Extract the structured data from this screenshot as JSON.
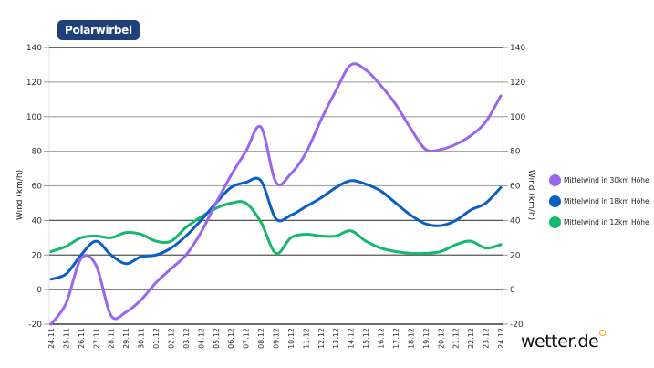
{
  "header": {
    "title": "Polarwirbel"
  },
  "brand": {
    "name": "wetter.de",
    "accent": "#f0b400"
  },
  "legend": [
    {
      "label": "Mittelwind in 30km Höhe",
      "color": "#9966ee"
    },
    {
      "label": "Mittelwind in 18km Höhe",
      "color": "#0a5fc4"
    },
    {
      "label": "Mittelwind in 12km Höhe",
      "color": "#14b86e"
    }
  ],
  "axes": {
    "ylabel_left": "Wind (km/h)",
    "ylabel_right": "Wind (km/h)"
  },
  "chart_data": {
    "type": "line",
    "title": "Polarwirbel",
    "xlabel": "",
    "ylabel": "Wind (km/h)",
    "ylim": [
      -20,
      140
    ],
    "yticks": [
      -20,
      0,
      20,
      40,
      60,
      80,
      100,
      120,
      140
    ],
    "grid": true,
    "legend_position": "right",
    "x": [
      "24.11",
      "25.11",
      "26.11",
      "27.11",
      "28.11",
      "29.11",
      "30.11",
      "01.12",
      "02.12",
      "03.12",
      "04.12",
      "05.12",
      "06.12",
      "07.12",
      "08.12",
      "09.12",
      "10.12",
      "11.12",
      "12.12",
      "13.12",
      "14.12",
      "15.12",
      "16.12",
      "17.12",
      "18.12",
      "19.12",
      "20.12",
      "21.12",
      "22.12",
      "23.12",
      "24.12"
    ],
    "series": [
      {
        "name": "Mittelwind in 30km Höhe",
        "color": "#9966ee",
        "values": [
          -20,
          -8,
          18,
          14,
          -15,
          -13,
          -6,
          4,
          12,
          20,
          33,
          50,
          66,
          80,
          94,
          62,
          67,
          79,
          98,
          115,
          130,
          127,
          118,
          107,
          93,
          81,
          81,
          84,
          89,
          97,
          112
        ]
      },
      {
        "name": "Mittelwind in 18km Höhe",
        "color": "#0a5fc4",
        "values": [
          6,
          9,
          20,
          28,
          20,
          15,
          19,
          20,
          24,
          31,
          40,
          50,
          59,
          62,
          63,
          41,
          43,
          48,
          53,
          59,
          63,
          61,
          57,
          50,
          43,
          38,
          37,
          40,
          46,
          50,
          59
        ]
      },
      {
        "name": "Mittelwind in 12km Höhe",
        "color": "#14b86e",
        "values": [
          22,
          25,
          30,
          31,
          30,
          33,
          32,
          28,
          28,
          36,
          42,
          47,
          50,
          50,
          39,
          21,
          30,
          32,
          31,
          31,
          34,
          28,
          24,
          22,
          21,
          21,
          22,
          26,
          28,
          24,
          26
        ]
      }
    ]
  }
}
